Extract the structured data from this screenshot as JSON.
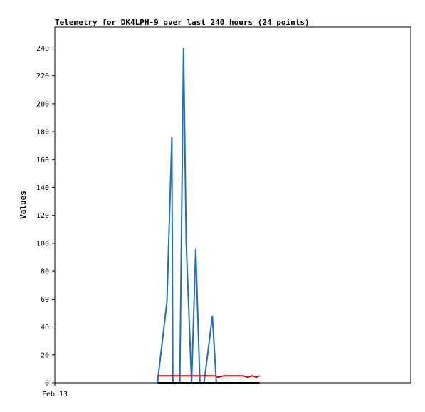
{
  "chart_data": {
    "type": "line",
    "title": "Telemetry for DK4LPH-9 over last 240 hours (24 points)",
    "ylabel": "Values",
    "xlabel": "",
    "x_tick_labels": [
      "Feb 13"
    ],
    "ylim": [
      0,
      255
    ],
    "xlim": [
      0,
      240
    ],
    "y_ticks": [
      0,
      20,
      40,
      60,
      80,
      100,
      120,
      140,
      160,
      180,
      200,
      220,
      240
    ],
    "grid": false,
    "series": [
      {
        "color": "#1f6fbf",
        "x": [
          69.2,
          75.6,
          78.9,
          79.6,
          84.3,
          86.8,
          88.6,
          92.2,
          95.0,
          97.8,
          100.6,
          102.4,
          106.2,
          108.9
        ],
        "values": [
          0,
          58,
          176,
          0,
          0,
          240,
          100,
          0,
          96,
          0,
          0,
          15,
          48,
          0
        ]
      },
      {
        "color": "#e00000",
        "x": [
          69.2,
          80.0,
          100.0,
          108.0,
          110.0,
          114.0,
          122.0,
          127.0,
          130.0,
          133.0,
          136.0,
          138.0
        ],
        "values": [
          5,
          5,
          5,
          5,
          4,
          5,
          5,
          5,
          4,
          5,
          4,
          5
        ]
      },
      {
        "color": "#000000",
        "x": [
          69.2,
          138.0
        ],
        "values": [
          0,
          0
        ]
      }
    ]
  }
}
